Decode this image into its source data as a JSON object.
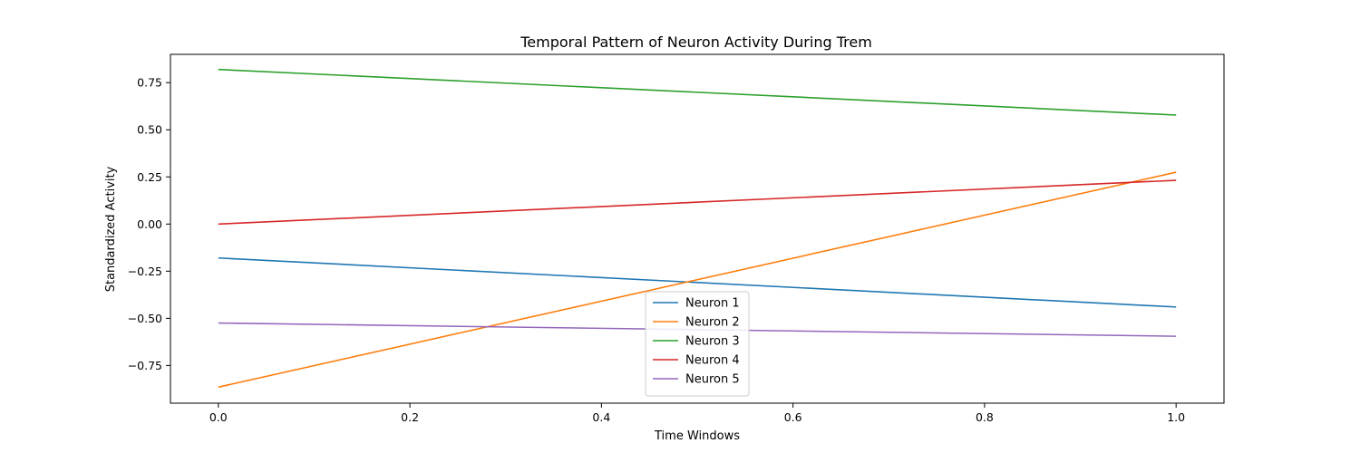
{
  "chart_data": {
    "type": "line",
    "title": "Temporal Pattern of Neuron Activity During Trem",
    "xlabel": "Time Windows",
    "ylabel": "Standardized Activity",
    "xlim": [
      -0.05,
      1.05
    ],
    "ylim": [
      -0.95,
      0.9
    ],
    "xticks": [
      0.0,
      0.2,
      0.4,
      0.6,
      0.8,
      1.0
    ],
    "xtick_labels": [
      "0.0",
      "0.2",
      "0.4",
      "0.6",
      "0.8",
      "1.0"
    ],
    "yticks": [
      -0.75,
      -0.5,
      -0.25,
      0.0,
      0.25,
      0.5,
      0.75
    ],
    "ytick_labels": [
      "−0.75",
      "−0.50",
      "−0.25",
      "0.00",
      "0.25",
      "0.50",
      "0.75"
    ],
    "grid": false,
    "legend_position": "lower-center",
    "x": [
      0,
      1
    ],
    "series": [
      {
        "name": "Neuron 1",
        "color": "#1f77b4",
        "values": [
          -0.18,
          -0.44
        ]
      },
      {
        "name": "Neuron 2",
        "color": "#ff7f0e",
        "values": [
          -0.865,
          0.275
        ]
      },
      {
        "name": "Neuron 3",
        "color": "#2ca02c",
        "values": [
          0.82,
          0.578
        ]
      },
      {
        "name": "Neuron 4",
        "color": "#d62728",
        "values": [
          0.0,
          0.232
        ]
      },
      {
        "name": "Neuron 5",
        "color": "#9467bd",
        "values": [
          -0.525,
          -0.595
        ]
      }
    ]
  }
}
